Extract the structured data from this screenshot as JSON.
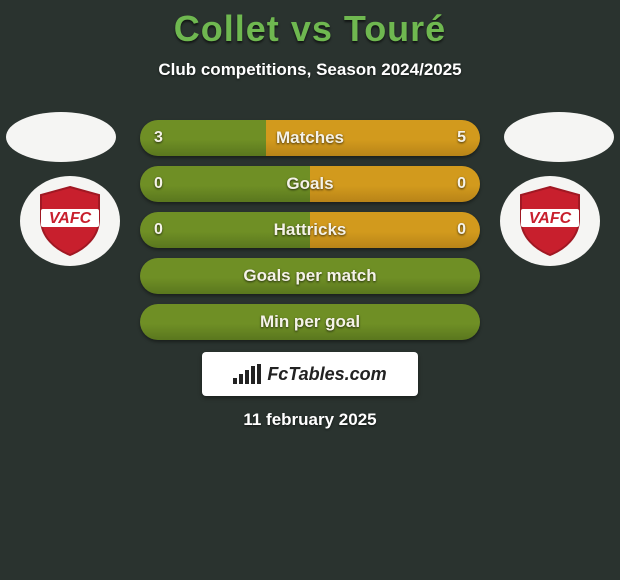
{
  "title_color": "#6fb850",
  "background_color": "#2a332f",
  "text_color": "#f5f2e8",
  "player_left": "Collet",
  "vs_word": "vs",
  "player_right": "Touré",
  "subtitle": "Club competitions, Season 2024/2025",
  "avatar_bg": "#f5f5f3",
  "club_logo": {
    "text": "VAFC",
    "shield_fill": "#c81f2d",
    "shield_border": "#a01823",
    "band_color": "#ffffff",
    "text_color": "#c81f2d"
  },
  "bars": [
    {
      "label": "Matches",
      "left": "3",
      "right": "5",
      "left_pct": 37,
      "right_pct": 63
    },
    {
      "label": "Goals",
      "left": "0",
      "right": "0",
      "left_pct": 50,
      "right_pct": 50
    },
    {
      "label": "Hattricks",
      "left": "0",
      "right": "0",
      "left_pct": 50,
      "right_pct": 50
    },
    {
      "label": "Goals per match",
      "left": "",
      "right": "",
      "left_pct": 100,
      "right_pct": 0
    },
    {
      "label": "Min per goal",
      "left": "",
      "right": "",
      "left_pct": 100,
      "right_pct": 0
    }
  ],
  "bar_colors": {
    "left": "#6f8f25",
    "right": "#d29a1d",
    "left_gradient_dark": "#5a771e",
    "right_gradient_dark": "#b88418"
  },
  "site_logo_text": "FcTables.com",
  "date_text": "11 february 2025"
}
